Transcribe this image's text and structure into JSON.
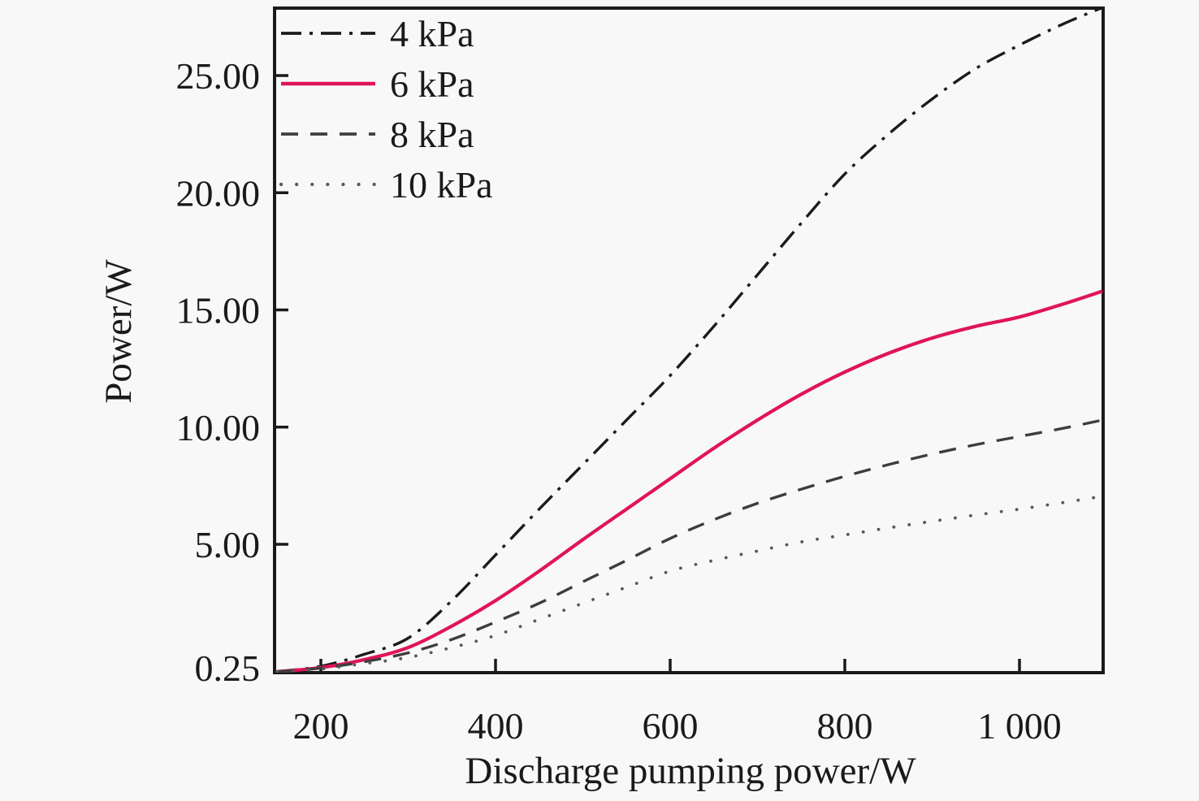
{
  "figure": {
    "background": "#f8f8f8",
    "axis_color": "#1a1a1a",
    "text_color": "#1a1a1a"
  },
  "chart_data": {
    "type": "line",
    "title": "",
    "xlabel": "Discharge pumping power/W",
    "ylabel": "Power/W",
    "xlim": [
      144,
      1098
    ],
    "ylim": [
      0.25,
      28
    ],
    "grid": false,
    "legend_position": "top-left",
    "x_ticks": {
      "values": [
        200,
        400,
        600,
        800,
        1000
      ],
      "labels": [
        "200",
        "400",
        "600",
        "800",
        "1 000"
      ]
    },
    "y_ticks": {
      "values": [
        25,
        20,
        15,
        10,
        5
      ],
      "labels": [
        "25.00",
        "20.00",
        "15.00",
        "10.00",
        "5.00"
      ]
    },
    "y_axis_min_label": "0.25",
    "x": [
      150,
      200,
      250,
      300,
      350,
      400,
      450,
      500,
      550,
      600,
      650,
      700,
      750,
      800,
      850,
      900,
      950,
      1000,
      1050,
      1095
    ],
    "series": [
      {
        "name": "4 kPa",
        "color": "#1b1b1b",
        "style": "dashdot",
        "values": [
          0.25,
          0.45,
          0.9,
          1.5,
          2.9,
          4.6,
          6.5,
          8.4,
          10.3,
          12.2,
          14.3,
          16.5,
          18.7,
          20.8,
          22.5,
          24.0,
          25.3,
          26.3,
          27.2,
          27.9
        ]
      },
      {
        "name": "6 kPa",
        "color": "#e0145a",
        "style": "solid",
        "values": [
          0.25,
          0.4,
          0.7,
          1.15,
          1.95,
          2.9,
          4.0,
          5.2,
          6.5,
          7.8,
          9.1,
          10.3,
          11.4,
          12.35,
          13.15,
          13.8,
          14.3,
          14.7,
          15.25,
          15.8
        ]
      },
      {
        "name": "8 kPa",
        "color": "#3d3d3d",
        "style": "dashed",
        "values": [
          0.25,
          0.38,
          0.62,
          0.95,
          1.45,
          2.1,
          2.8,
          3.6,
          4.4,
          5.25,
          6.05,
          6.75,
          7.35,
          7.9,
          8.4,
          8.85,
          9.25,
          9.6,
          9.95,
          10.3
        ]
      },
      {
        "name": "10 kPa",
        "color": "#595959",
        "style": "dotted",
        "values": [
          0.25,
          0.35,
          0.55,
          0.78,
          1.15,
          1.6,
          2.2,
          2.8,
          3.4,
          4.0,
          4.4,
          4.75,
          5.1,
          5.4,
          5.7,
          5.98,
          6.25,
          6.5,
          6.78,
          7.05
        ]
      }
    ]
  }
}
